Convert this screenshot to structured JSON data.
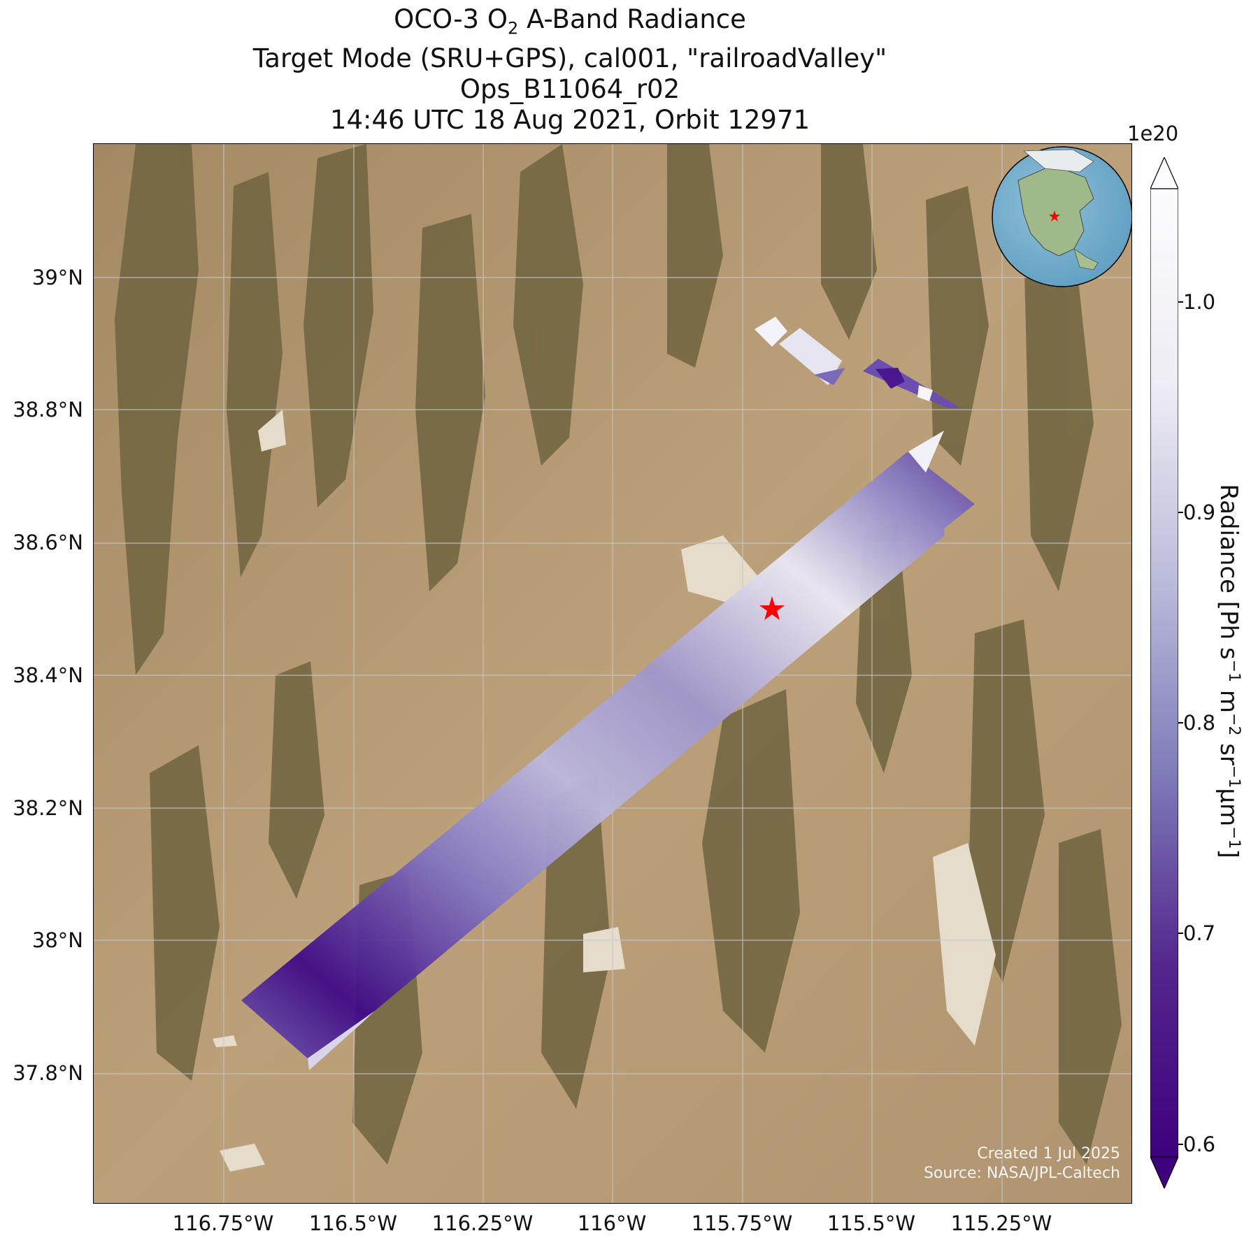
{
  "title": {
    "line1_prefix": "OCO-3 O",
    "line1_sub": "2",
    "line1_suffix": " A-Band Radiance",
    "line2": "Target Mode (SRU+GPS), cal001, \"railroadValley\"",
    "line3": "Ops_B11064_r02",
    "line4": "14:46 UTC 18 Aug 2021, Orbit 12971"
  },
  "axes": {
    "y_ticks": [
      "39°N",
      "38.8°N",
      "38.6°N",
      "38.4°N",
      "38.2°N",
      "38°N",
      "37.8°N"
    ],
    "x_ticks": [
      "116.75°W",
      "116.5°W",
      "116.25°W",
      "116°W",
      "115.75°W",
      "115.5°W",
      "115.25°W"
    ]
  },
  "credits": {
    "created": "Created 1 Jul 2025",
    "source": "Source: NASA/JPL-Caltech"
  },
  "colorbar": {
    "exponent": "1e20",
    "ticks": [
      "0.6",
      "0.7",
      "0.8",
      "0.9",
      "1.0"
    ],
    "tick_values": [
      0.6,
      0.7,
      0.8,
      0.9,
      1.0
    ],
    "range": [
      0.58,
      1.03
    ],
    "colormap": "Purples_r",
    "extend": "both",
    "label_main": "Radiance [Ph s",
    "label_exp1": "−1",
    "label_m": " m",
    "label_exp2": "−2",
    "label_sr": " sr",
    "label_exp3": "−1",
    "label_um": "μm",
    "label_exp4": "−1",
    "label_close": "]"
  },
  "target": {
    "name": "railroadValley",
    "marker": "red-star",
    "color": "#ff0000",
    "lat": 38.5,
    "lon": -115.69
  },
  "colors": {
    "terrain": "#b89a72",
    "mountain": "#6f6440",
    "playa": "#e6dccb",
    "grid": "#c8c8c8",
    "swath_low": "#3f007d",
    "swath_high": "#fcfbfd"
  },
  "inset_globe": {
    "marker": "red-star"
  }
}
